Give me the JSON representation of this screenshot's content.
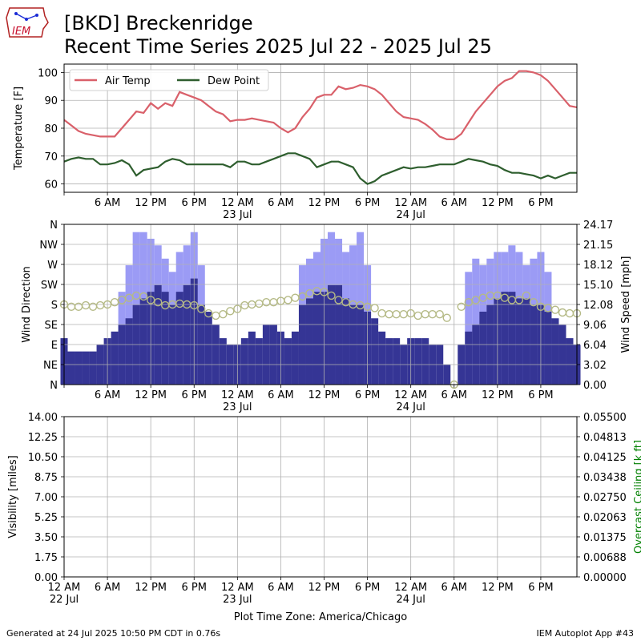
{
  "header": {
    "logo_text": "IEM",
    "title_line1": "[BKD] Breckenridge",
    "title_line2": "Recent Time Series 2025 Jul 22 - 2025 Jul 25"
  },
  "footer": {
    "left": "Generated at 24 Jul 2025 10:50 PM CDT in 0.76s",
    "right": "IEM Autoplot App #43",
    "timezone": "Plot Time Zone: America/Chicago"
  },
  "x_axis": {
    "range_hours": [
      0,
      71
    ],
    "ticks": [
      {
        "h": 0,
        "label": "12 AM",
        "sub": "22 Jul"
      },
      {
        "h": 6,
        "label": "6 AM",
        "sub": ""
      },
      {
        "h": 12,
        "label": "12 PM",
        "sub": ""
      },
      {
        "h": 18,
        "label": "6 PM",
        "sub": ""
      },
      {
        "h": 24,
        "label": "12 AM",
        "sub": "23 Jul"
      },
      {
        "h": 30,
        "label": "6 AM",
        "sub": ""
      },
      {
        "h": 36,
        "label": "12 PM",
        "sub": ""
      },
      {
        "h": 42,
        "label": "6 PM",
        "sub": ""
      },
      {
        "h": 48,
        "label": "12 AM",
        "sub": "24 Jul"
      },
      {
        "h": 54,
        "label": "6 AM",
        "sub": ""
      },
      {
        "h": 60,
        "label": "12 PM",
        "sub": ""
      },
      {
        "h": 66,
        "label": "6 PM",
        "sub": ""
      }
    ]
  },
  "chart_data": [
    {
      "type": "line",
      "ylabel": "Temperature [F]",
      "ylim": [
        57,
        103
      ],
      "yticks": [
        60,
        70,
        80,
        90,
        100
      ],
      "grid": true,
      "legend": "top-left",
      "x_hours": [
        0,
        1,
        2,
        3,
        4,
        5,
        6,
        7,
        8,
        9,
        10,
        11,
        12,
        13,
        14,
        15,
        16,
        17,
        18,
        19,
        20,
        21,
        22,
        23,
        24,
        25,
        26,
        27,
        28,
        29,
        30,
        31,
        32,
        33,
        34,
        35,
        36,
        37,
        38,
        39,
        40,
        41,
        42,
        43,
        44,
        45,
        46,
        47,
        48,
        49,
        50,
        51,
        52,
        53,
        54,
        55,
        56,
        57,
        58,
        59,
        60,
        61,
        62,
        63,
        64,
        65,
        66,
        67,
        68,
        69,
        70,
        71
      ],
      "series": [
        {
          "name": "Air Temp",
          "color": "#d9606a",
          "values": [
            83,
            81,
            79,
            78,
            77.5,
            77,
            77,
            77,
            80,
            83,
            86,
            85.5,
            89,
            87,
            89,
            88,
            93,
            92,
            91,
            90,
            88,
            86,
            85,
            82.5,
            83,
            83,
            83.5,
            83,
            82.5,
            82,
            80,
            78.5,
            80,
            84,
            87,
            91,
            92,
            92,
            95,
            94,
            94.5,
            95.5,
            95,
            94,
            92,
            89,
            86,
            84,
            83.5,
            83,
            81.5,
            79.5,
            77,
            76,
            76,
            78,
            82,
            86,
            89,
            92,
            95,
            97,
            98,
            100.5,
            100.5,
            100,
            99,
            97,
            94,
            91,
            88,
            87.5
          ]
        },
        {
          "name": "Dew Point",
          "color": "#2e5e2e",
          "values": [
            68,
            69,
            69.5,
            69,
            69,
            67,
            67,
            67.5,
            68.5,
            67,
            63,
            65,
            65.5,
            66,
            68,
            69,
            68.5,
            67,
            67,
            67,
            67,
            67,
            67,
            66,
            68,
            68,
            67,
            67,
            68,
            69,
            70,
            71,
            71,
            70,
            69,
            66,
            67,
            68,
            68,
            67,
            66,
            62,
            60,
            61,
            63,
            64,
            65,
            66,
            65.5,
            66,
            66,
            66.5,
            67,
            67,
            67,
            68,
            69,
            68.5,
            68,
            67,
            66.5,
            65,
            64,
            64,
            63.5,
            63,
            62,
            63,
            62,
            63,
            64,
            64
          ]
        }
      ]
    },
    {
      "type": "bar",
      "ylabel": "Wind Direction",
      "ylabel_right": "Wind Speed [mph]",
      "dir_ticks": [
        "N",
        "NE",
        "E",
        "SE",
        "S",
        "SW",
        "W",
        "NW",
        "N"
      ],
      "speed_ylim": [
        0,
        24.17
      ],
      "speed_ticks": [
        "0.00",
        "3.02",
        "6.04",
        "9.06",
        "12.08",
        "15.10",
        "18.12",
        "21.15",
        "24.17"
      ],
      "dir_ylim": [
        0,
        360
      ],
      "grid": true,
      "x_hours": [
        0,
        1,
        2,
        3,
        4,
        5,
        6,
        7,
        8,
        9,
        10,
        11,
        12,
        13,
        14,
        15,
        16,
        17,
        18,
        19,
        20,
        21,
        22,
        23,
        24,
        25,
        26,
        27,
        28,
        29,
        30,
        31,
        32,
        33,
        34,
        35,
        36,
        37,
        38,
        39,
        40,
        41,
        42,
        43,
        44,
        45,
        46,
        47,
        48,
        49,
        50,
        51,
        52,
        53,
        54,
        55,
        56,
        57,
        58,
        59,
        60,
        61,
        62,
        63,
        64,
        65,
        66,
        67,
        68,
        69,
        70,
        71
      ],
      "series": [
        {
          "name": "Wind Speed",
          "color": "#353595",
          "values": [
            7,
            5,
            5,
            5,
            5,
            6,
            7,
            8,
            9,
            10,
            12,
            13,
            14,
            15,
            14,
            12,
            14,
            15,
            16,
            12,
            11,
            9,
            7,
            6,
            6,
            7,
            8,
            7,
            9,
            9,
            8,
            7,
            8,
            12,
            13,
            14,
            14,
            15,
            15,
            13,
            12,
            12,
            11,
            10,
            8,
            7,
            7,
            6,
            7,
            7,
            7,
            6,
            6,
            3,
            0,
            6,
            8,
            9,
            11,
            12,
            13,
            14,
            14,
            13,
            13,
            12,
            12,
            11,
            10,
            9,
            7,
            6
          ]
        },
        {
          "name": "Wind Gust",
          "color": "#9b9bf5",
          "values": [
            0,
            0,
            0,
            0,
            0,
            0,
            0,
            0,
            14,
            18,
            23,
            23,
            22,
            21,
            19,
            17,
            20,
            21,
            23,
            18,
            0,
            0,
            0,
            0,
            0,
            0,
            0,
            0,
            0,
            0,
            0,
            0,
            0,
            18,
            19,
            20,
            22,
            23,
            22,
            20,
            21,
            23,
            18,
            0,
            0,
            0,
            0,
            0,
            0,
            0,
            0,
            0,
            0,
            0,
            0,
            0,
            17,
            19,
            18,
            19,
            20,
            20,
            21,
            20,
            18,
            19,
            20,
            17,
            0,
            0,
            0,
            0
          ]
        },
        {
          "name": "Wind Direction",
          "color": "#b5ba86",
          "values": [
            180,
            175,
            175,
            178,
            175,
            178,
            180,
            185,
            190,
            195,
            200,
            198,
            190,
            185,
            178,
            180,
            182,
            180,
            178,
            170,
            160,
            155,
            158,
            165,
            170,
            178,
            180,
            182,
            185,
            185,
            188,
            190,
            195,
            198,
            205,
            210,
            208,
            200,
            190,
            185,
            180,
            178,
            175,
            172,
            160,
            158,
            158,
            158,
            160,
            155,
            158,
            158,
            158,
            150,
            0,
            175,
            185,
            190,
            195,
            200,
            200,
            195,
            190,
            190,
            200,
            185,
            175,
            172,
            168,
            162,
            160,
            160
          ]
        }
      ]
    },
    {
      "type": "line",
      "ylabel": "Visibility [miles]",
      "ylabel_right": "Overcast Ceiling [k ft]",
      "ylabel_right_color": "#008000",
      "ylim": [
        0,
        14
      ],
      "yticks": [
        "0.00",
        "1.75",
        "3.50",
        "5.25",
        "7.00",
        "8.75",
        "10.50",
        "12.25",
        "14.00"
      ],
      "ylim_right": [
        0,
        0.055
      ],
      "yticks_right": [
        "0.00000",
        "0.00688",
        "0.01375",
        "0.02063",
        "0.02750",
        "0.03438",
        "0.04125",
        "0.04813",
        "0.05500"
      ],
      "grid": true,
      "series": []
    }
  ]
}
